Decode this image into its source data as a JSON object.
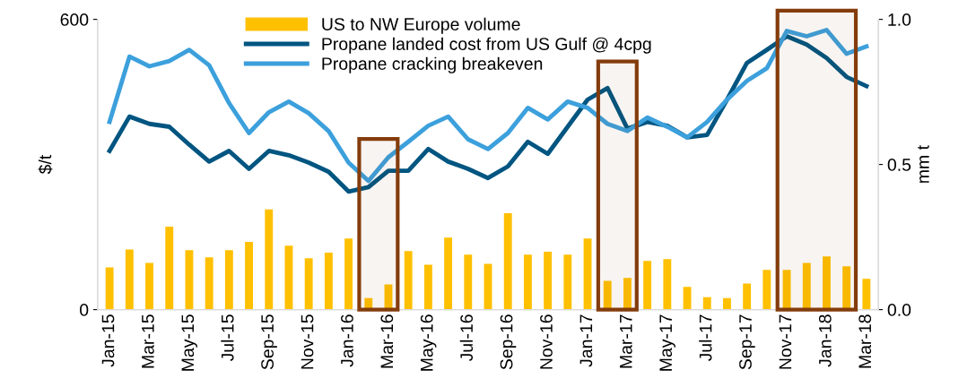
{
  "chart_data": {
    "type": "line",
    "x": [
      "2015-01",
      "2015-02",
      "2015-03",
      "2015-04",
      "2015-05",
      "2015-06",
      "2015-07",
      "2015-08",
      "2015-09",
      "2015-10",
      "2015-11",
      "2015-12",
      "2016-01",
      "2016-02",
      "2016-03",
      "2016-04",
      "2016-05",
      "2016-06",
      "2016-07",
      "2016-08",
      "2016-09",
      "2016-10",
      "2016-11",
      "2016-12",
      "2017-01",
      "2017-02",
      "2017-03",
      "2017-04",
      "2017-05",
      "2017-06",
      "2017-07",
      "2017-08",
      "2017-09",
      "2017-10",
      "2017-11",
      "2017-12",
      "2018-01",
      "2018-02",
      "2018-03"
    ],
    "xticks": [
      {
        "value": "2015-01",
        "label": "Jan-15"
      },
      {
        "value": "2015-03",
        "label": "Mar-15"
      },
      {
        "value": "2015-05",
        "label": "May-15"
      },
      {
        "value": "2015-07",
        "label": "Jul-15"
      },
      {
        "value": "2015-09",
        "label": "Sep-15"
      },
      {
        "value": "2015-11",
        "label": "Nov-15"
      },
      {
        "value": "2016-01",
        "label": "Jan-16"
      },
      {
        "value": "2016-03",
        "label": "Mar-16"
      },
      {
        "value": "2016-05",
        "label": "May-16"
      },
      {
        "value": "2016-07",
        "label": "Jul-16"
      },
      {
        "value": "2016-09",
        "label": "Sep-16"
      },
      {
        "value": "2016-11",
        "label": "Nov-16"
      },
      {
        "value": "2017-01",
        "label": "Jan-17"
      },
      {
        "value": "2017-03",
        "label": "Mar-17"
      },
      {
        "value": "2017-05",
        "label": "May-17"
      },
      {
        "value": "2017-07",
        "label": "Jul-17"
      },
      {
        "value": "2017-09",
        "label": "Sep-17"
      },
      {
        "value": "2017-11",
        "label": "Nov-17"
      },
      {
        "value": "2018-01",
        "label": "Jan-18"
      },
      {
        "value": "2018-03",
        "label": "Mar-18"
      }
    ],
    "series": [
      {
        "name": "US to NW Europe volume",
        "type": "bar",
        "axis": "y2",
        "color": "#ffc000",
        "values": [
          0.145,
          0.207,
          0.161,
          0.286,
          0.205,
          0.18,
          0.205,
          0.233,
          0.345,
          0.22,
          0.177,
          0.196,
          0.245,
          0.04,
          0.087,
          0.202,
          0.155,
          0.248,
          0.189,
          0.158,
          0.332,
          0.189,
          0.199,
          0.189,
          0.245,
          0.099,
          0.109,
          0.168,
          0.174,
          0.078,
          0.043,
          0.04,
          0.09,
          0.137,
          0.137,
          0.161,
          0.183,
          0.149,
          0.106
        ]
      },
      {
        "name": "Propane landed cost from US Gulf @ 4cpg",
        "color": "#005581",
        "values": [
          328,
          399,
          384,
          378,
          341,
          306,
          328,
          291,
          328,
          319,
          304,
          285,
          244,
          253,
          287,
          287,
          332,
          306,
          291,
          272,
          296,
          347,
          322,
          378,
          434,
          458,
          374,
          388,
          380,
          356,
          361,
          434,
          510,
          537,
          565,
          548,
          520,
          481,
          462
        ]
      },
      {
        "name": "Propane cracking breakeven",
        "color": "#3ca0dc",
        "values": [
          388,
          523,
          503,
          514,
          537,
          505,
          427,
          365,
          408,
          430,
          406,
          369,
          304,
          266,
          315,
          347,
          380,
          399,
          352,
          332,
          365,
          417,
          393,
          430,
          417,
          384,
          369,
          397,
          378,
          356,
          388,
          434,
          473,
          499,
          576,
          565,
          578,
          529,
          544
        ]
      }
    ],
    "ylabel": "$/t",
    "y2label": "mm t",
    "ylim": [
      0,
      600
    ],
    "yticks": [
      0,
      600
    ],
    "y2lim": [
      0,
      1
    ],
    "y2ticks": [
      {
        "value": 0,
        "label": "0.0"
      },
      {
        "value": 0.5,
        "label": "0.5"
      },
      {
        "value": 1,
        "label": "1.0"
      }
    ],
    "bands": [
      {
        "axis": "x",
        "from": "2016-01-17",
        "to": "2016-03-15",
        "color": "#843c0c"
      },
      {
        "axis": "x",
        "from": "2017-01-17",
        "to": "2017-03-15",
        "color": "#843c0c"
      },
      {
        "axis": "x",
        "from": "2017-10-17",
        "to": "2018-02-15",
        "color": "#843c0c"
      }
    ],
    "xlim": [
      "2014-12-13",
      "2018-03-19"
    ],
    "legend": "top",
    "grid": false,
    "line_style": "solid",
    "marker": "none"
  }
}
